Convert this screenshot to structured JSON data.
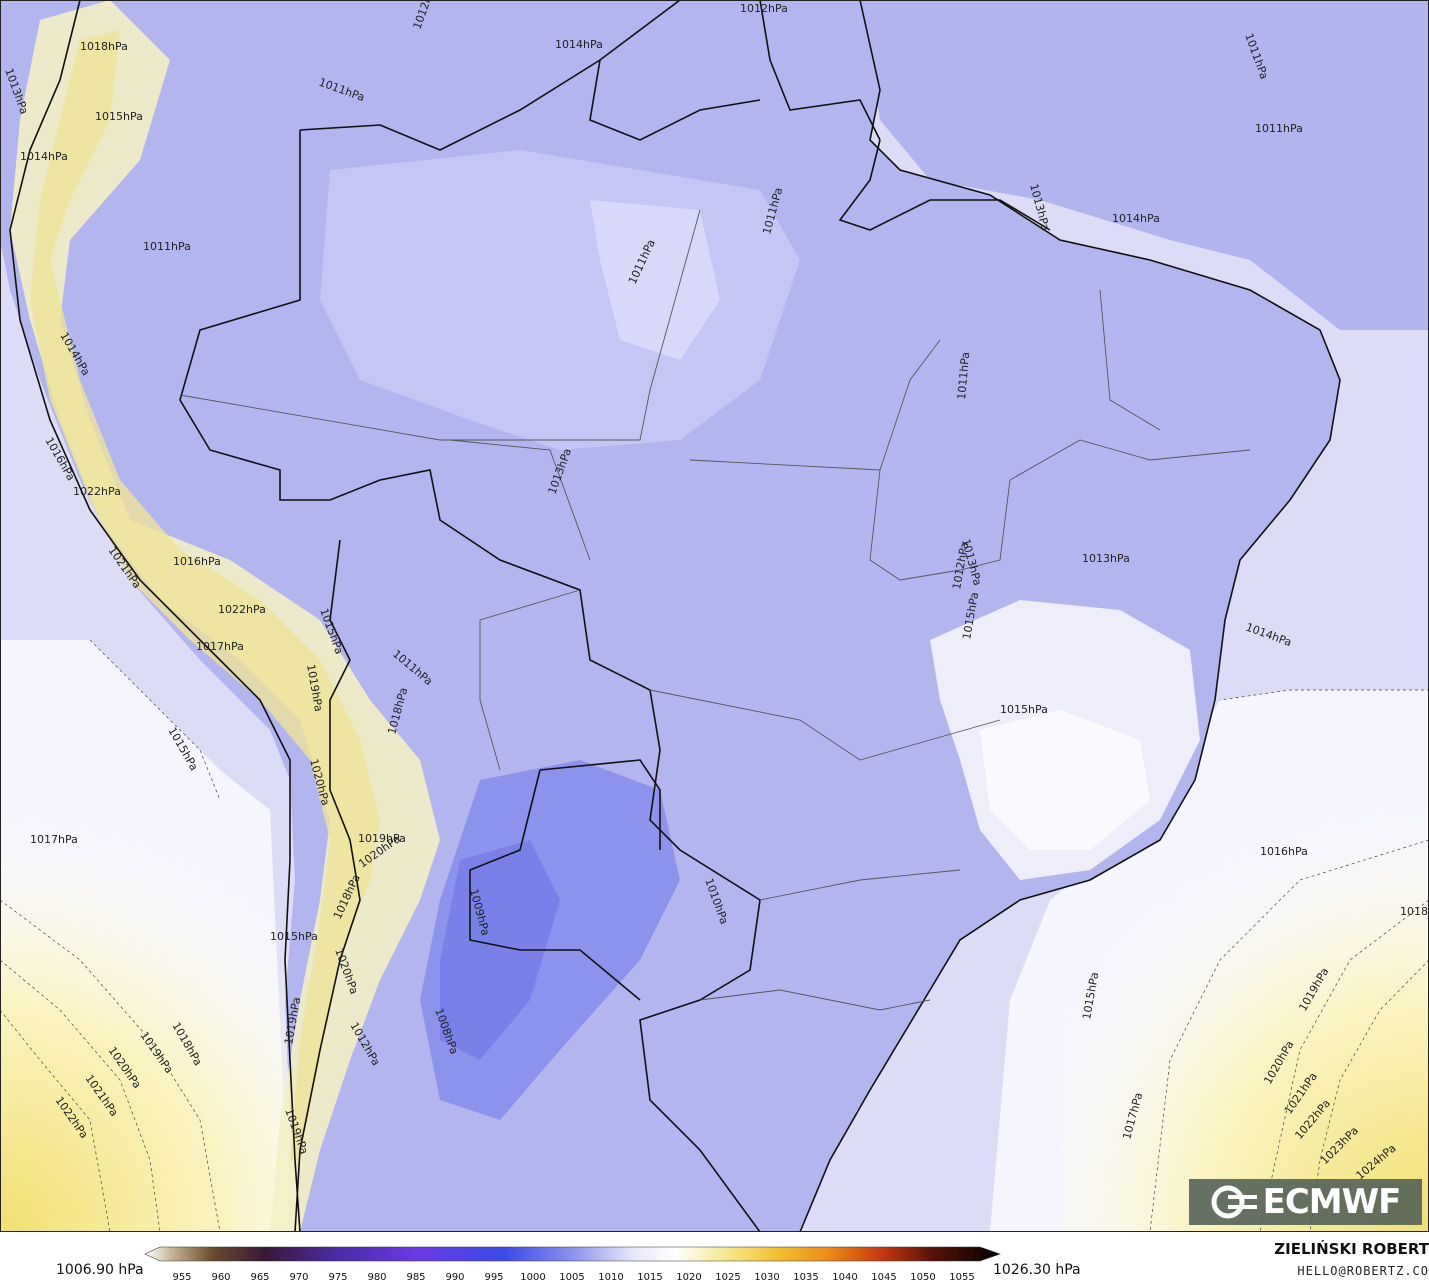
{
  "map": {
    "min_value": "1006.90 hPa",
    "max_value": "1026.30 hPa",
    "colorbar_ticks": [
      "955",
      "960",
      "965",
      "970",
      "975",
      "980",
      "985",
      "990",
      "995",
      "1000",
      "1005",
      "1010",
      "1015",
      "1020",
      "1025",
      "1030",
      "1035",
      "1040",
      "1045",
      "1050",
      "1055"
    ],
    "colors": {
      "low": "#6a72e8",
      "mid_low": "#a4a8f2",
      "neutral": "#f2f2fc",
      "high": "#faf4c0",
      "very_high": "#f2e070"
    },
    "isobar_labels": [
      {
        "text": "1013hPa"
      },
      {
        "text": "1018hPa"
      },
      {
        "text": "1015hPa"
      },
      {
        "text": "1014hPa"
      },
      {
        "text": "1011hPa"
      },
      {
        "text": "1012hPa"
      },
      {
        "text": "1014hPa"
      },
      {
        "text": "1012hPa"
      },
      {
        "text": "1011hPa"
      },
      {
        "text": "1011hPa"
      },
      {
        "text": "1014hPa"
      },
      {
        "text": "1013hPa"
      },
      {
        "text": "1011hPa"
      },
      {
        "text": "1011hPa"
      },
      {
        "text": "1011hPa"
      },
      {
        "text": "1011hPa"
      },
      {
        "text": "1014hPa"
      },
      {
        "text": "1013hPa"
      },
      {
        "text": "1022hPa"
      },
      {
        "text": "1016hPa"
      },
      {
        "text": "1021hPa"
      },
      {
        "text": "1016hPa"
      },
      {
        "text": "1022hPa"
      },
      {
        "text": "1017hPa"
      },
      {
        "text": "1015hPa"
      },
      {
        "text": "1019hPa"
      },
      {
        "text": "1011hPa"
      },
      {
        "text": "1013hPa"
      },
      {
        "text": "1012hPa"
      },
      {
        "text": "1015hPa"
      },
      {
        "text": "1013hPa"
      },
      {
        "text": "1014hPa"
      },
      {
        "text": "1015hPa"
      },
      {
        "text": "1015hPa"
      },
      {
        "text": "1018hPa"
      },
      {
        "text": "1020hPa"
      },
      {
        "text": "1017hPa"
      },
      {
        "text": "1019hPa"
      },
      {
        "text": "1020hPa"
      },
      {
        "text": "1018hPa"
      },
      {
        "text": "1015hPa"
      },
      {
        "text": "1009hPa"
      },
      {
        "text": "1010hPa"
      },
      {
        "text": "1016hPa"
      },
      {
        "text": "1018"
      },
      {
        "text": "1020hPa"
      },
      {
        "text": "1008hPa"
      },
      {
        "text": "1012hPa"
      },
      {
        "text": "1019hPa"
      },
      {
        "text": "1019hPa"
      },
      {
        "text": "1018hPa"
      },
      {
        "text": "1019hPa"
      },
      {
        "text": "1020hPa"
      },
      {
        "text": "1021hPa"
      },
      {
        "text": "1022hPa"
      },
      {
        "text": "1015hPa"
      },
      {
        "text": "1019hPa"
      },
      {
        "text": "1017hPa"
      },
      {
        "text": "1020hPa"
      },
      {
        "text": "1021hPa"
      },
      {
        "text": "1022hPa"
      },
      {
        "text": "1023hPa"
      },
      {
        "text": "1024hPa"
      }
    ]
  },
  "logo": {
    "text": "ECMWF",
    "icon": "ecmwf-logo-icon"
  },
  "credits": {
    "author": "ZIELIŃSKI ROBERT",
    "email": "HELLO@ROBERTZ.CO"
  }
}
